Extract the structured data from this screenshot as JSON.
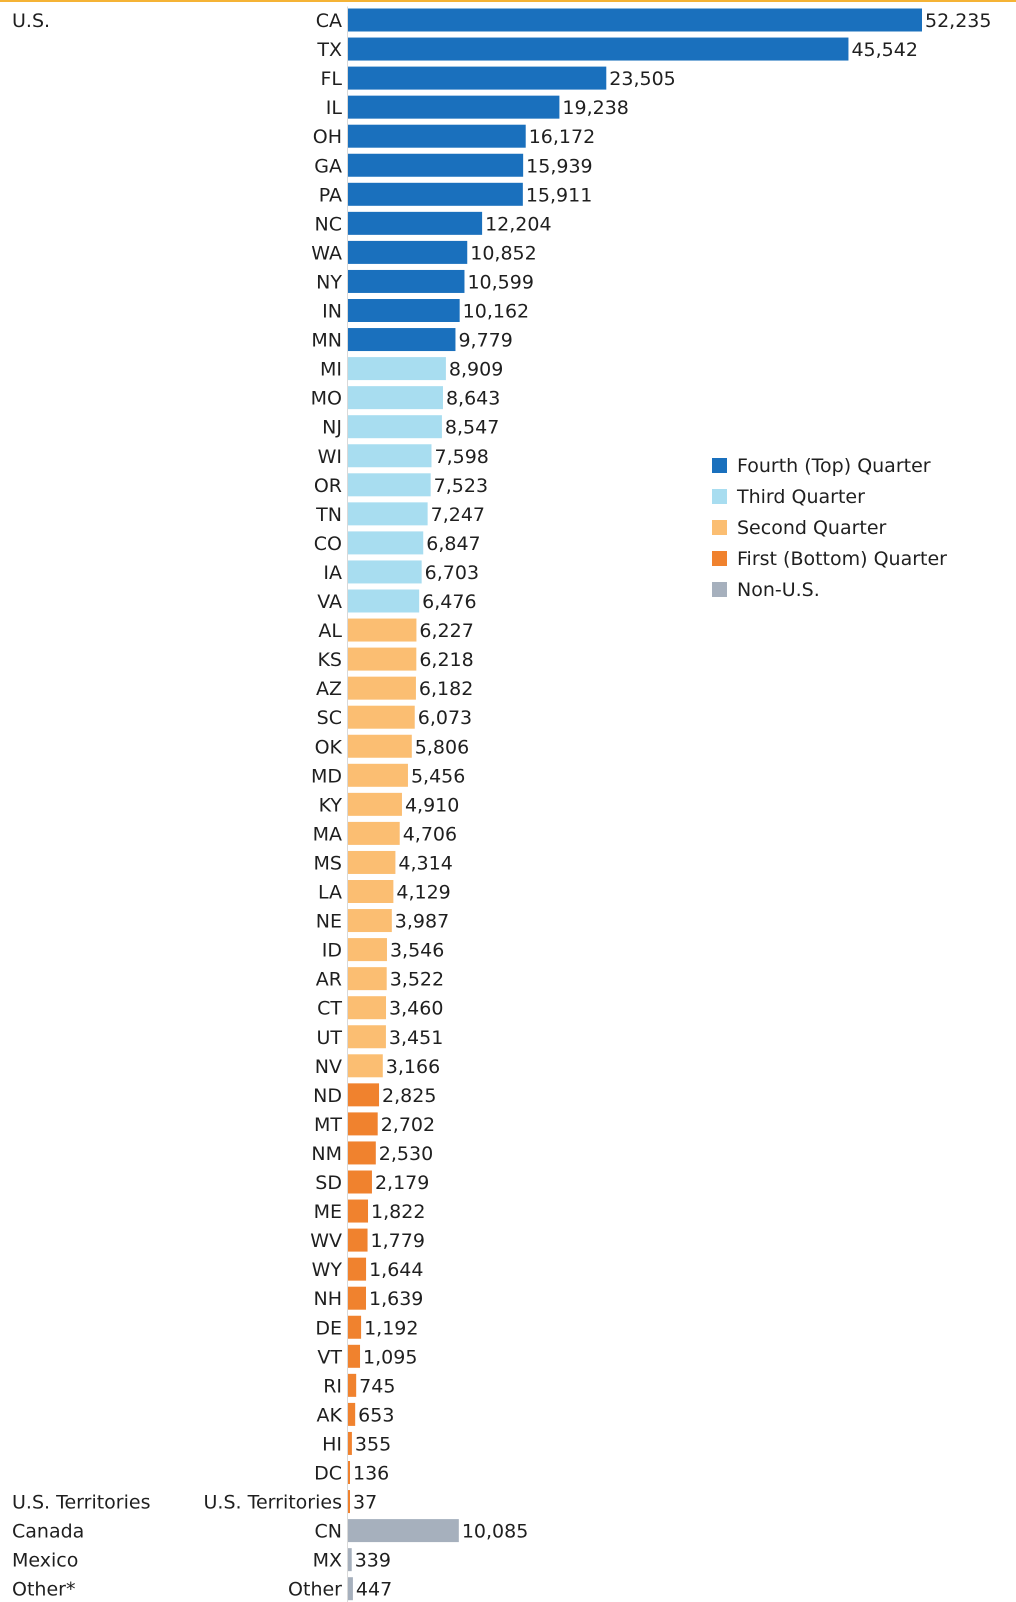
{
  "chart_data": {
    "type": "bar",
    "orientation": "horizontal",
    "groups": [
      {
        "label": "U.S.",
        "rows": [
          {
            "label": "CA",
            "value": 52235,
            "series": "fourth"
          },
          {
            "label": "TX",
            "value": 45542,
            "series": "fourth"
          },
          {
            "label": "FL",
            "value": 23505,
            "series": "fourth"
          },
          {
            "label": "IL",
            "value": 19238,
            "series": "fourth"
          },
          {
            "label": "OH",
            "value": 16172,
            "series": "fourth"
          },
          {
            "label": "GA",
            "value": 15939,
            "series": "fourth"
          },
          {
            "label": "PA",
            "value": 15911,
            "series": "fourth"
          },
          {
            "label": "NC",
            "value": 12204,
            "series": "fourth"
          },
          {
            "label": "WA",
            "value": 10852,
            "series": "fourth"
          },
          {
            "label": "NY",
            "value": 10599,
            "series": "fourth"
          },
          {
            "label": "IN",
            "value": 10162,
            "series": "fourth"
          },
          {
            "label": "MN",
            "value": 9779,
            "series": "fourth"
          },
          {
            "label": "MI",
            "value": 8909,
            "series": "third"
          },
          {
            "label": "MO",
            "value": 8643,
            "series": "third"
          },
          {
            "label": "NJ",
            "value": 8547,
            "series": "third"
          },
          {
            "label": "WI",
            "value": 7598,
            "series": "third"
          },
          {
            "label": "OR",
            "value": 7523,
            "series": "third"
          },
          {
            "label": "TN",
            "value": 7247,
            "series": "third"
          },
          {
            "label": "CO",
            "value": 6847,
            "series": "third"
          },
          {
            "label": "IA",
            "value": 6703,
            "series": "third"
          },
          {
            "label": "VA",
            "value": 6476,
            "series": "third"
          },
          {
            "label": "AL",
            "value": 6227,
            "series": "second"
          },
          {
            "label": "KS",
            "value": 6218,
            "series": "second"
          },
          {
            "label": "AZ",
            "value": 6182,
            "series": "second"
          },
          {
            "label": "SC",
            "value": 6073,
            "series": "second"
          },
          {
            "label": "OK",
            "value": 5806,
            "series": "second"
          },
          {
            "label": "MD",
            "value": 5456,
            "series": "second"
          },
          {
            "label": "KY",
            "value": 4910,
            "series": "second"
          },
          {
            "label": "MA",
            "value": 4706,
            "series": "second"
          },
          {
            "label": "MS",
            "value": 4314,
            "series": "second"
          },
          {
            "label": "LA",
            "value": 4129,
            "series": "second"
          },
          {
            "label": "NE",
            "value": 3987,
            "series": "second"
          },
          {
            "label": "ID",
            "value": 3546,
            "series": "second"
          },
          {
            "label": "AR",
            "value": 3522,
            "series": "second"
          },
          {
            "label": "CT",
            "value": 3460,
            "series": "second"
          },
          {
            "label": "UT",
            "value": 3451,
            "series": "second"
          },
          {
            "label": "NV",
            "value": 3166,
            "series": "second"
          },
          {
            "label": "ND",
            "value": 2825,
            "series": "first"
          },
          {
            "label": "MT",
            "value": 2702,
            "series": "first"
          },
          {
            "label": "NM",
            "value": 2530,
            "series": "first"
          },
          {
            "label": "SD",
            "value": 2179,
            "series": "first"
          },
          {
            "label": "ME",
            "value": 1822,
            "series": "first"
          },
          {
            "label": "WV",
            "value": 1779,
            "series": "first"
          },
          {
            "label": "WY",
            "value": 1644,
            "series": "first"
          },
          {
            "label": "NH",
            "value": 1639,
            "series": "first"
          },
          {
            "label": "DE",
            "value": 1192,
            "series": "first"
          },
          {
            "label": "VT",
            "value": 1095,
            "series": "first"
          },
          {
            "label": "RI",
            "value": 745,
            "series": "first"
          },
          {
            "label": "AK",
            "value": 653,
            "series": "first"
          },
          {
            "label": "HI",
            "value": 355,
            "series": "first"
          },
          {
            "label": "DC",
            "value": 136,
            "series": "first"
          }
        ]
      },
      {
        "label": "U.S. Territories",
        "rows": [
          {
            "label": "U.S. Territories",
            "value": 37,
            "series": "first"
          }
        ]
      },
      {
        "label": "Canada",
        "rows": [
          {
            "label": "CN",
            "value": 10085,
            "series": "nonus"
          }
        ]
      },
      {
        "label": "Mexico",
        "rows": [
          {
            "label": "MX",
            "value": 339,
            "series": "nonus"
          }
        ]
      },
      {
        "label": "Other*",
        "rows": [
          {
            "label": "Other",
            "value": 447,
            "series": "nonus"
          }
        ]
      }
    ],
    "legend": [
      {
        "key": "fourth",
        "name": "Fourth (Top) Quarter",
        "color": "#1a70bd"
      },
      {
        "key": "third",
        "name": "Third Quarter",
        "color": "#a8ddf0"
      },
      {
        "key": "second",
        "name": "Second Quarter",
        "color": "#fbbe72"
      },
      {
        "key": "first",
        "name": "First (Bottom) Quarter",
        "color": "#f0822e"
      },
      {
        "key": "nonus",
        "name": "Non-U.S.",
        "color": "#a6b0bd"
      }
    ],
    "legend_position": "right",
    "value_labels": "end-of-bar",
    "xlim": [
      0,
      52235
    ],
    "grid": false,
    "title": "",
    "xlabel": "",
    "ylabel": ""
  }
}
